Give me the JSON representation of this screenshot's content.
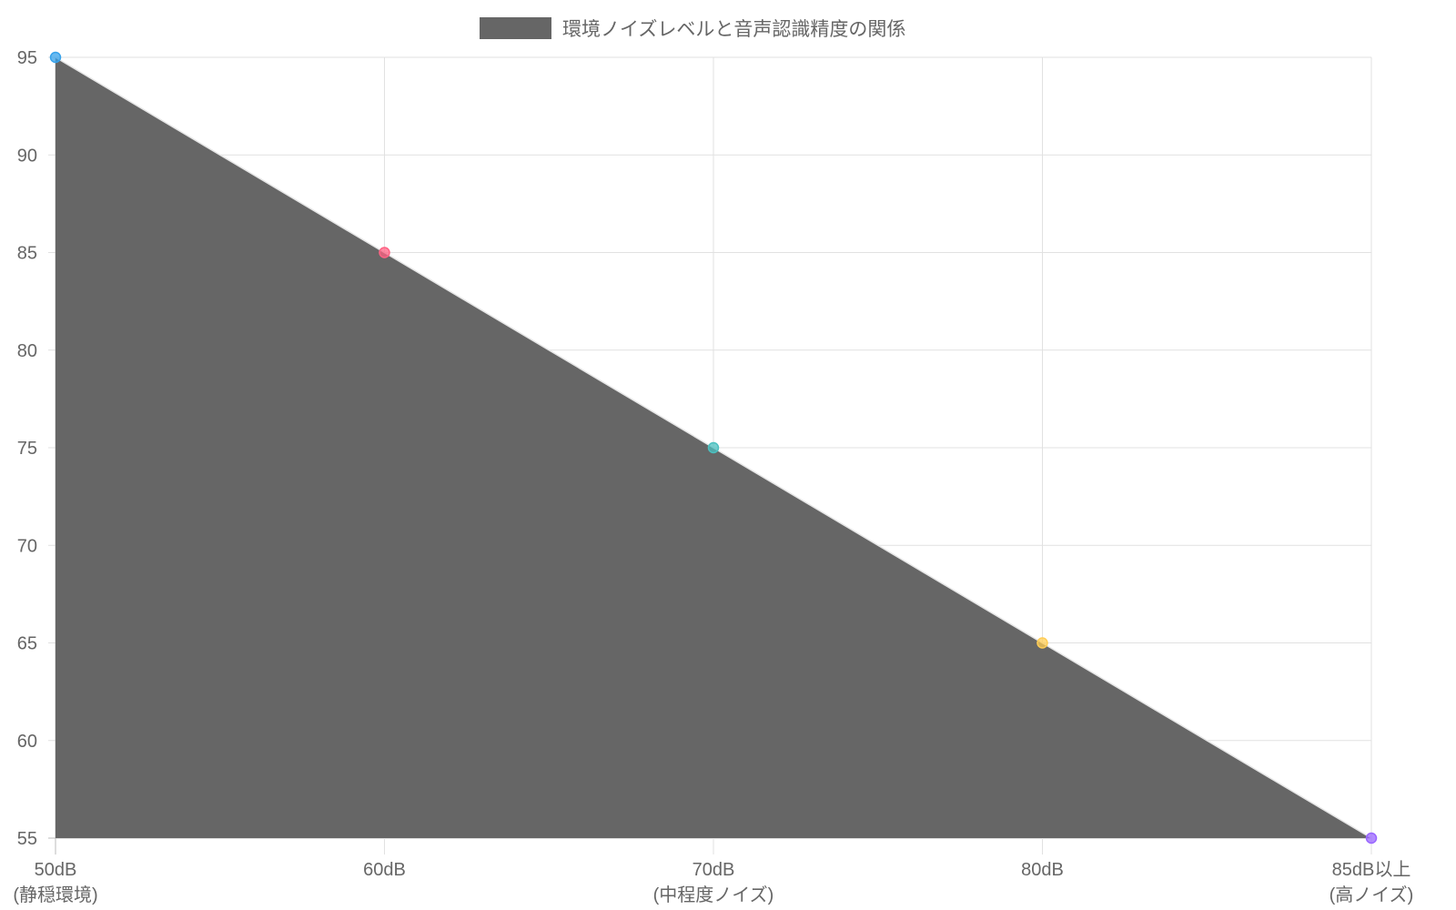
{
  "chart_data": {
    "type": "area",
    "categories": [
      [
        "50dB",
        "(静穏環境)"
      ],
      [
        "60dB"
      ],
      [
        "70dB",
        "(中程度ノイズ)"
      ],
      [
        "80dB"
      ],
      [
        "85dB以上",
        "(高ノイズ)"
      ]
    ],
    "series": [
      {
        "name": "環境ノイズレベルと音声認識精度の関係",
        "values": [
          95,
          85,
          75,
          65,
          55
        ],
        "fill_color": "#666666",
        "point_colors": [
          "#36a2eb",
          "#ff6384",
          "#4bc0c0",
          "#ffcd56",
          "#9966ff"
        ]
      }
    ],
    "ylim": [
      55,
      95
    ],
    "yticks": [
      55,
      60,
      65,
      70,
      75,
      80,
      85,
      90,
      95
    ],
    "grid": true,
    "legend_position": "top"
  }
}
